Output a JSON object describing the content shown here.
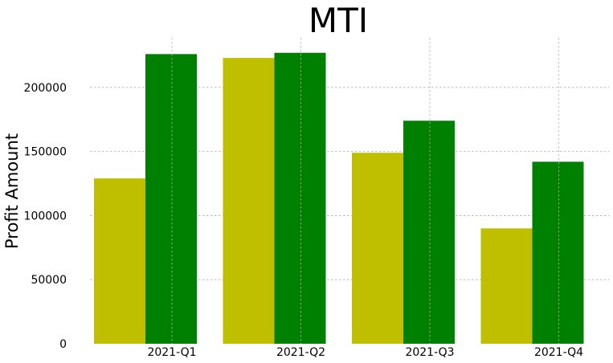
{
  "chart_data": {
    "type": "bar",
    "title": "MTI",
    "xlabel": "",
    "ylabel": "Profit Amount",
    "categories": [
      "2021-Q1",
      "2021-Q2",
      "2021-Q3",
      "2021-Q4"
    ],
    "series": [
      {
        "color": "#bfbf00",
        "values": [
          129000,
          223000,
          149000,
          90000
        ]
      },
      {
        "color": "#008000",
        "values": [
          226000,
          227000,
          174000,
          142000
        ]
      }
    ],
    "yticks": [
      0,
      50000,
      100000,
      150000,
      200000
    ],
    "ylim": [
      0,
      240000
    ],
    "grid": true,
    "legend": "none"
  }
}
